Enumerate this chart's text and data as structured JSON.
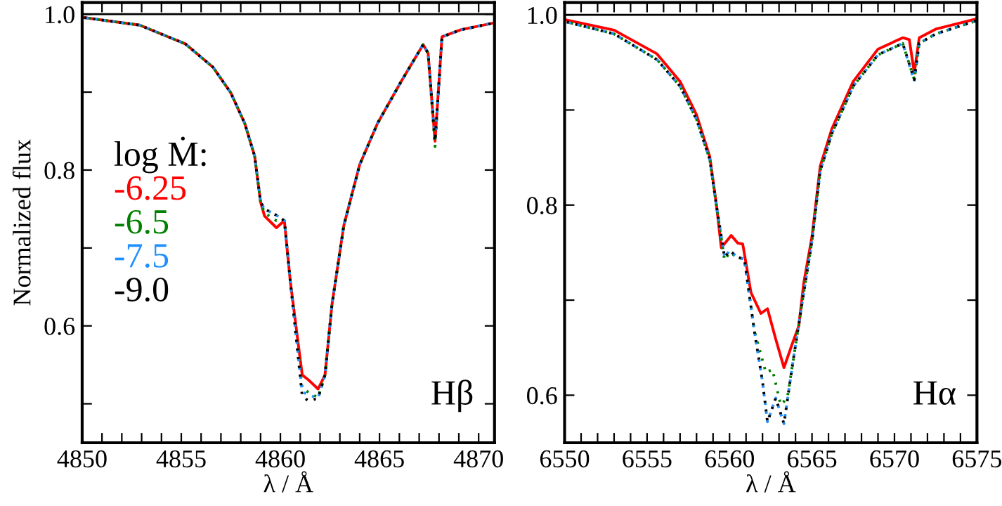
{
  "chart_data": [
    {
      "type": "line",
      "xlabel": "λ / Å",
      "ylabel": "Normalized flux",
      "legend_title": "log Ṁ:",
      "legend": "left",
      "annotations": [
        "Hβ"
      ],
      "xlim": [
        4850,
        4870.8
      ],
      "ylim": [
        0.45,
        1.015
      ],
      "xticks": [
        4850,
        {
          "value": 4851,
          "label": null
        },
        {
          "value": 4852,
          "label": null
        },
        {
          "value": 4853,
          "label": null
        },
        {
          "value": 4854,
          "label": null
        },
        4855,
        {
          "value": 4856,
          "label": null
        },
        {
          "value": 4857,
          "label": null
        },
        {
          "value": 4858,
          "label": null
        },
        {
          "value": 4859,
          "label": null
        },
        4860,
        {
          "value": 4861,
          "label": null
        },
        {
          "value": 4862,
          "label": null
        },
        {
          "value": 4863,
          "label": null
        },
        {
          "value": 4864,
          "label": null
        },
        4865,
        {
          "value": 4866,
          "label": null
        },
        {
          "value": 4867,
          "label": null
        },
        {
          "value": 4868,
          "label": null
        },
        {
          "value": 4869,
          "label": null
        },
        4870
      ],
      "yticks": [
        {
          "value": 0.5,
          "label": null
        },
        {
          "value": 0.6,
          "label": "0.6"
        },
        {
          "value": 0.7,
          "label": null
        },
        {
          "value": 0.8,
          "label": "0.8"
        },
        {
          "value": 0.9,
          "label": null
        },
        {
          "value": 1.0,
          "label": "1.0"
        }
      ],
      "ref_lines": [
        {
          "axis": "y",
          "value": 1.0,
          "color": "#000000"
        }
      ],
      "series": [
        {
          "name": "-6.25",
          "color": "#ff0000",
          "line_style": "solid",
          "x": [
            4850,
            4852.9,
            4855.2,
            4856.6,
            4857.5,
            4858.2,
            4858.7,
            4859.0,
            4859.2,
            4859.8,
            4860.2,
            4860.5,
            4861.1,
            4861.4,
            4861.9,
            4862.25,
            4862.6,
            4863.2,
            4864.0,
            4864.9,
            4866.1,
            4867.2,
            4867.45,
            4867.8,
            4868.15,
            4869.1,
            4870.8
          ],
          "values": [
            0.996,
            0.986,
            0.962,
            0.932,
            0.899,
            0.86,
            0.818,
            0.759,
            0.741,
            0.726,
            0.735,
            0.657,
            0.537,
            0.531,
            0.519,
            0.537,
            0.627,
            0.729,
            0.807,
            0.86,
            0.914,
            0.961,
            0.95,
            0.837,
            0.971,
            0.98,
            0.989
          ]
        },
        {
          "name": "-6.5",
          "color": "#008000",
          "line_style": "dashed",
          "x": [
            4850,
            4852.9,
            4855.2,
            4856.6,
            4857.5,
            4858.2,
            4858.7,
            4859.0,
            4859.2,
            4859.8,
            4860.2,
            4860.5,
            4861.1,
            4861.4,
            4861.9,
            4862.25,
            4862.6,
            4863.2,
            4864.0,
            4864.9,
            4866.1,
            4867.2,
            4867.45,
            4867.8,
            4868.15,
            4869.1,
            4870.8
          ],
          "values": [
            0.996,
            0.986,
            0.962,
            0.932,
            0.899,
            0.86,
            0.818,
            0.759,
            0.745,
            0.735,
            0.735,
            0.657,
            0.52,
            0.515,
            0.508,
            0.537,
            0.627,
            0.729,
            0.807,
            0.86,
            0.914,
            0.961,
            0.95,
            0.83,
            0.971,
            0.98,
            0.989
          ]
        },
        {
          "name": "-7.5",
          "color": "#1e90ff",
          "line_style": "dashed",
          "x": [
            4850,
            4852.9,
            4855.2,
            4856.6,
            4857.5,
            4858.2,
            4858.7,
            4859.0,
            4859.2,
            4859.8,
            4860.2,
            4860.5,
            4861.1,
            4861.4,
            4861.9,
            4862.25,
            4862.6,
            4863.2,
            4864.0,
            4864.9,
            4866.1,
            4867.2,
            4867.45,
            4867.8,
            4868.15,
            4869.1,
            4870.8
          ],
          "values": [
            0.996,
            0.986,
            0.962,
            0.932,
            0.899,
            0.86,
            0.818,
            0.759,
            0.75,
            0.742,
            0.735,
            0.657,
            0.515,
            0.512,
            0.507,
            0.537,
            0.627,
            0.729,
            0.807,
            0.86,
            0.914,
            0.961,
            0.95,
            0.837,
            0.971,
            0.98,
            0.989
          ]
        },
        {
          "name": "-9.0",
          "color": "#000000",
          "line_style": "dashed",
          "x": [
            4850,
            4852.9,
            4855.2,
            4856.6,
            4857.5,
            4858.2,
            4858.7,
            4859.0,
            4859.2,
            4859.8,
            4860.2,
            4860.5,
            4861.1,
            4861.4,
            4861.9,
            4862.25,
            4862.6,
            4863.2,
            4864.0,
            4864.9,
            4866.1,
            4867.2,
            4867.45,
            4867.8,
            4868.15,
            4869.1,
            4870.8
          ],
          "values": [
            0.996,
            0.986,
            0.962,
            0.932,
            0.899,
            0.86,
            0.818,
            0.759,
            0.75,
            0.742,
            0.735,
            0.657,
            0.51,
            0.504,
            0.507,
            0.537,
            0.627,
            0.729,
            0.807,
            0.86,
            0.914,
            0.961,
            0.95,
            0.837,
            0.971,
            0.98,
            0.989
          ]
        }
      ]
    },
    {
      "type": "line",
      "xlabel": "λ / Å",
      "annotations": [
        "Hα"
      ],
      "xlim": [
        6550,
        6575
      ],
      "ylim": [
        0.55,
        1.013
      ],
      "xticks": [
        6550,
        {
          "value": 6551,
          "label": null
        },
        {
          "value": 6552,
          "label": null
        },
        {
          "value": 6553,
          "label": null
        },
        {
          "value": 6554,
          "label": null
        },
        6555,
        {
          "value": 6556,
          "label": null
        },
        {
          "value": 6557,
          "label": null
        },
        {
          "value": 6558,
          "label": null
        },
        {
          "value": 6559,
          "label": null
        },
        6560,
        {
          "value": 6561,
          "label": null
        },
        {
          "value": 6562,
          "label": null
        },
        {
          "value": 6563,
          "label": null
        },
        {
          "value": 6564,
          "label": null
        },
        6565,
        {
          "value": 6566,
          "label": null
        },
        {
          "value": 6567,
          "label": null
        },
        {
          "value": 6568,
          "label": null
        },
        {
          "value": 6569,
          "label": null
        },
        6570,
        {
          "value": 6571,
          "label": null
        },
        {
          "value": 6572,
          "label": null
        },
        {
          "value": 6573,
          "label": null
        },
        {
          "value": 6574,
          "label": null
        },
        6575
      ],
      "yticks": [
        {
          "value": 0.6,
          "label": "0.6"
        },
        {
          "value": 0.7,
          "label": null
        },
        {
          "value": 0.8,
          "label": "0.8"
        },
        {
          "value": 0.9,
          "label": null
        },
        {
          "value": 1.0,
          "label": "1.0"
        }
      ],
      "ref_lines": [
        {
          "axis": "y",
          "value": 1.0,
          "color": "#000000"
        }
      ],
      "series": [
        {
          "color": "#ff0000",
          "line_style": "solid",
          "x": [
            6550,
            6553,
            6555.6,
            6557,
            6558,
            6558.8,
            6559.2,
            6559.5,
            6560.1,
            6560.5,
            6560.8,
            6561.3,
            6561.9,
            6562.3,
            6562.8,
            6563.3,
            6563.8,
            6564.2,
            6564.5,
            6565,
            6565.5,
            6566.2,
            6567.5,
            6569,
            6570.5,
            6570.9,
            6571.2,
            6571.5,
            6572.5,
            6575
          ],
          "values": [
            0.995,
            0.984,
            0.959,
            0.93,
            0.895,
            0.851,
            0.801,
            0.755,
            0.768,
            0.76,
            0.759,
            0.708,
            0.686,
            0.691,
            0.659,
            0.629,
            0.654,
            0.673,
            0.718,
            0.767,
            0.841,
            0.88,
            0.93,
            0.964,
            0.976,
            0.974,
            0.939,
            0.976,
            0.985,
            0.996
          ]
        },
        {
          "color": "#008000",
          "line_style": "dashed",
          "x": [
            6550,
            6553,
            6555.6,
            6557,
            6558,
            6558.8,
            6559.2,
            6559.7,
            6560,
            6560.5,
            6560.9,
            6561.5,
            6562.2,
            6562.6,
            6563.1,
            6563.5,
            6563.8,
            6564.5,
            6565,
            6565.5,
            6566.2,
            6567.5,
            6569,
            6570.5,
            6571.2,
            6571.5,
            6572.5,
            6575
          ],
          "values": [
            0.993,
            0.98,
            0.953,
            0.925,
            0.89,
            0.848,
            0.8,
            0.742,
            0.75,
            0.745,
            0.743,
            0.668,
            0.624,
            0.627,
            0.59,
            0.597,
            0.63,
            0.708,
            0.762,
            0.836,
            0.875,
            0.925,
            0.958,
            0.97,
            0.932,
            0.97,
            0.98,
            0.994
          ]
        },
        {
          "color": "#1e90ff",
          "line_style": "dashed",
          "x": [
            6550,
            6553,
            6555.6,
            6557,
            6558,
            6558.8,
            6559.2,
            6559.7,
            6560,
            6560.5,
            6560.9,
            6561.5,
            6562,
            6562.3,
            6562.8,
            6563.3,
            6563.8,
            6564.5,
            6565,
            6565.5,
            6566.2,
            6567.5,
            6569,
            6570.5,
            6571.2,
            6571.5,
            6572.5,
            6575
          ],
          "values": [
            0.993,
            0.98,
            0.953,
            0.925,
            0.89,
            0.848,
            0.8,
            0.745,
            0.752,
            0.745,
            0.743,
            0.668,
            0.614,
            0.572,
            0.597,
            0.57,
            0.63,
            0.708,
            0.762,
            0.836,
            0.875,
            0.925,
            0.958,
            0.97,
            0.93,
            0.97,
            0.98,
            0.994
          ]
        },
        {
          "color": "#000000",
          "line_style": "dashed",
          "x": [
            6550,
            6553,
            6555.6,
            6557,
            6558,
            6558.8,
            6559.2,
            6559.7,
            6560,
            6560.5,
            6560.9,
            6561.5,
            6562,
            6562.3,
            6562.8,
            6563.3,
            6563.8,
            6564.5,
            6565,
            6565.5,
            6566.2,
            6567.5,
            6569,
            6570.5,
            6571.2,
            6571.5,
            6572.5,
            6575
          ],
          "values": [
            0.993,
            0.98,
            0.953,
            0.925,
            0.89,
            0.848,
            0.8,
            0.745,
            0.752,
            0.745,
            0.743,
            0.668,
            0.614,
            0.572,
            0.597,
            0.57,
            0.63,
            0.708,
            0.762,
            0.836,
            0.875,
            0.925,
            0.958,
            0.97,
            0.932,
            0.97,
            0.98,
            0.994
          ]
        }
      ]
    }
  ]
}
